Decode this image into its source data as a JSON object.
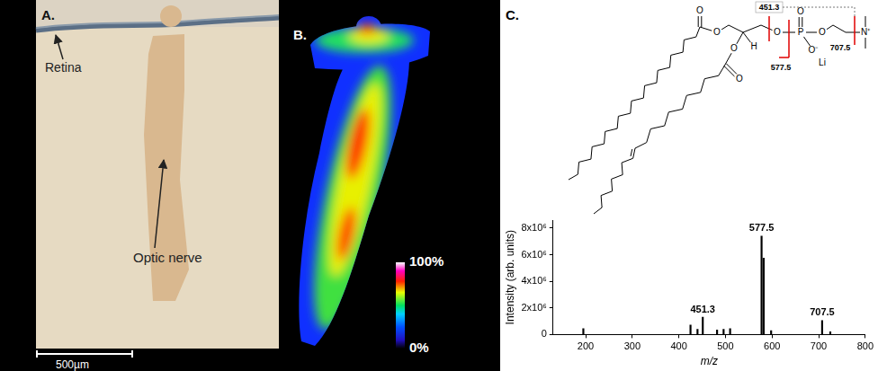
{
  "panels": {
    "A": {
      "letter": "A.",
      "labels": [
        "Retina",
        "Optic nerve"
      ],
      "scale_bar": "500µm"
    },
    "B": {
      "letter": "B.",
      "colorbar": {
        "range": [
          0,
          100
        ],
        "ticks": [
          {
            "value": 0,
            "label": "0%"
          },
          {
            "value": 100,
            "label": "100%"
          }
        ]
      }
    },
    "C": {
      "letter": "C.",
      "structure": {
        "atoms": [
          "O",
          "O",
          "O",
          "O",
          "H",
          "O",
          "P",
          "O",
          "O⁻",
          "Li",
          "O",
          "N⁺"
        ],
        "fragments": [
          "451.3",
          "577.5",
          "707.5"
        ]
      }
    }
  },
  "chart_data": {
    "type": "bar",
    "x": [
      195,
      425,
      440,
      451.3,
      482,
      496,
      510,
      577.5,
      582,
      598,
      707.5,
      725
    ],
    "values": [
      450000,
      720000,
      400000,
      1300000,
      350000,
      400000,
      450000,
      7400000,
      5750000,
      300000,
      1050000,
      200000
    ],
    "color": "#000000",
    "xlabel": "m/z",
    "ylabel": "Intensity (arb. units)",
    "xlim": [
      130,
      800
    ],
    "xticks": [
      200,
      300,
      400,
      500,
      600,
      700,
      800
    ],
    "ylim": [
      0,
      8600000
    ],
    "yticks": [
      0,
      {
        "value": 2000000,
        "label": "2x10⁶"
      },
      {
        "value": 4000000,
        "label": "4x10⁶"
      },
      {
        "value": 6000000,
        "label": "6x10⁶"
      },
      {
        "value": 8000000,
        "label": "8x10⁶"
      }
    ],
    "grid": false,
    "annotations": [
      {
        "text": "451.3",
        "x": 451.3
      },
      {
        "text": "577.5",
        "x": 577.5
      },
      {
        "text": "707.5",
        "x": 707.5
      }
    ]
  }
}
